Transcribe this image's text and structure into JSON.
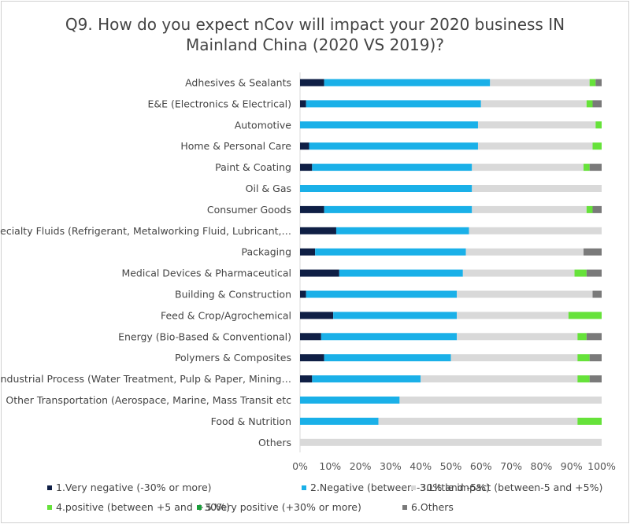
{
  "chart_data": {
    "type": "bar",
    "orientation": "horizontal",
    "stacked": true,
    "title_lines": [
      "Q9. How do you expect nCov will impact your 2020 business IN",
      "Mainland China (2020 VS 2019)?"
    ],
    "categories": [
      "Adhesives & Sealants",
      "E&E (Electronics & Electrical)",
      "Automotive",
      "Home & Personal Care",
      "Paint & Coating",
      "Oil & Gas",
      "Consumer Goods",
      "Specialty Fluids (Refrigerant, Metalworking Fluid, Lubricant,…",
      "Packaging",
      "Medical Devices & Pharmaceutical",
      "Building & Construction",
      "Feed & Crop/Agrochemical",
      "Energy (Bio-Based & Conventional)",
      "Polymers & Composites",
      "Industrial Process (Water Treatment, Pulp & Paper, Mining…",
      "Other Transportation (Aerospace, Marine, Mass Transit etc",
      "Food & Nutrition",
      "Others"
    ],
    "series": [
      {
        "name": "1.Very negative (-30% or more)",
        "color": "#0f1f45",
        "values": [
          8,
          2,
          0,
          3,
          4,
          0,
          8,
          12,
          5,
          13,
          2,
          11,
          7,
          8,
          4,
          0,
          0,
          0
        ]
      },
      {
        "name": "2.Negative (between -30% and -5%)",
        "color": "#1ab0e8",
        "values": [
          55,
          58,
          59,
          56,
          53,
          57,
          49,
          44,
          50,
          41,
          50,
          41,
          45,
          42,
          36,
          33,
          26,
          0
        ]
      },
      {
        "name": "3.Little impact (between-5 and +5%)",
        "color": "#d9d9d9",
        "values": [
          33,
          35,
          39,
          38,
          37,
          43,
          38,
          44,
          39,
          37,
          45,
          37,
          40,
          42,
          52,
          67,
          66,
          100
        ]
      },
      {
        "name": "4.positive (between +5 and +30%)",
        "color": "#66e23a",
        "values": [
          2,
          2,
          2,
          3,
          2,
          0,
          2,
          0,
          0,
          4,
          0,
          11,
          3,
          4,
          4,
          0,
          8,
          0
        ]
      },
      {
        "name": "5.Very positive (+30% or more)",
        "color": "#1a9e3a",
        "values": [
          0,
          0,
          0,
          0,
          0,
          0,
          0,
          0,
          0,
          0,
          0,
          0,
          0,
          0,
          0,
          0,
          0,
          0
        ]
      },
      {
        "name": "6.Others",
        "color": "#7a7a7a",
        "values": [
          2,
          3,
          0,
          0,
          4,
          0,
          3,
          0,
          6,
          5,
          3,
          0,
          5,
          4,
          4,
          0,
          0,
          0
        ]
      }
    ],
    "xlim": [
      0,
      100
    ],
    "x_ticks": [
      "0%",
      "10%",
      "20%",
      "30%",
      "40%",
      "50%",
      "60%",
      "70%",
      "80%",
      "90%",
      "100%"
    ],
    "grid": false,
    "legend_position": "bottom"
  }
}
